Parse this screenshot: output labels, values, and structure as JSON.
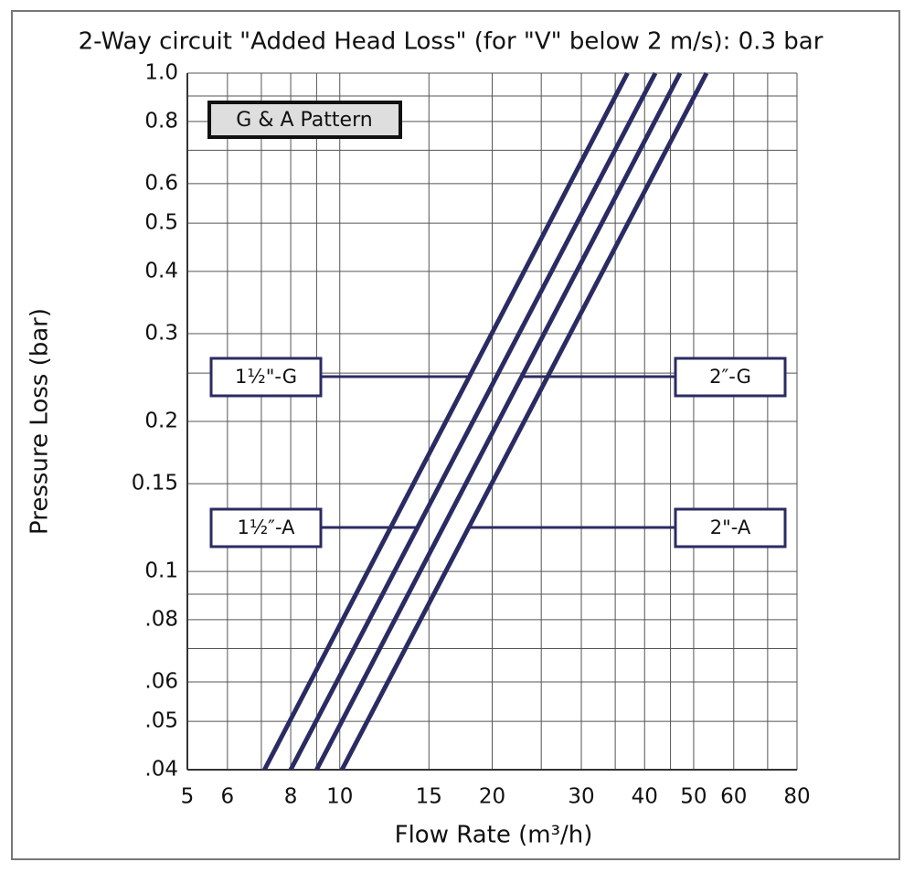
{
  "chart_data": {
    "type": "line",
    "title": "2-Way circuit \"Added Head Loss\" (for \"V\" below 2 m/s): 0.3 bar",
    "x_label": "Flow Rate (m³/h)",
    "y_label": "Pressure Loss (bar)",
    "annotation": "G & A Pattern",
    "log_x": true,
    "log_y": true,
    "grid": true,
    "xlim": [
      5,
      80
    ],
    "ylim": [
      0.04,
      1
    ],
    "xticks": [
      5,
      6,
      8,
      10,
      15,
      20,
      30,
      40,
      50,
      60,
      80
    ],
    "xminor": [
      7,
      9,
      25,
      35,
      45,
      70
    ],
    "yticks": [
      {
        "value": 1,
        "label": "1.0"
      },
      0.8,
      0.6,
      0.5,
      0.4,
      0.3,
      0.2,
      0.15,
      0.1,
      {
        "value": 0.08,
        "label": ".08"
      },
      {
        "value": 0.06,
        "label": ".06"
      },
      {
        "value": 0.05,
        "label": ".05"
      },
      {
        "value": 0.04,
        "label": ".04"
      }
    ],
    "yminor": [
      0.9,
      0.7,
      0.25,
      0.09,
      0.07
    ],
    "series": [
      {
        "name": "1½\"-G",
        "color": "#2b2b63",
        "x": [
          7.1,
          37
        ],
        "values": [
          0.04,
          1
        ]
      },
      {
        "name": "1½″-A",
        "color": "#2b2b63",
        "x": [
          8,
          42
        ],
        "values": [
          0.04,
          1
        ]
      },
      {
        "name": "2″-G",
        "color": "#2b2b63",
        "x": [
          9,
          47
        ],
        "values": [
          0.04,
          1
        ]
      },
      {
        "name": "2\"-A",
        "color": "#2b2b63",
        "x": [
          10.1,
          53
        ],
        "values": [
          0.04,
          1
        ]
      }
    ]
  }
}
